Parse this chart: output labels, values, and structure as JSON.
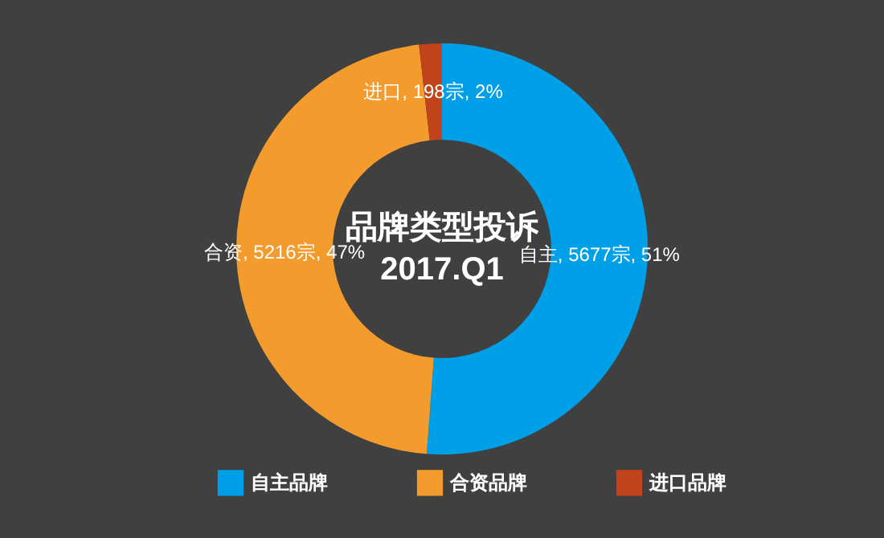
{
  "chart_data": {
    "type": "donut",
    "title": "品牌类型投诉",
    "subtitle": "2017.Q1",
    "categories": [
      "自主品牌",
      "合资品牌",
      "进口品牌"
    ],
    "values": [
      5677,
      5216,
      198
    ],
    "colors": [
      "#00a0e9",
      "#f39b2d",
      "#c0431a"
    ],
    "value_labels": [
      "自主, 5677宗, 51%",
      "合资, 5216宗, 47%",
      "进口, 198宗, 2%"
    ],
    "legend": "bottom"
  }
}
